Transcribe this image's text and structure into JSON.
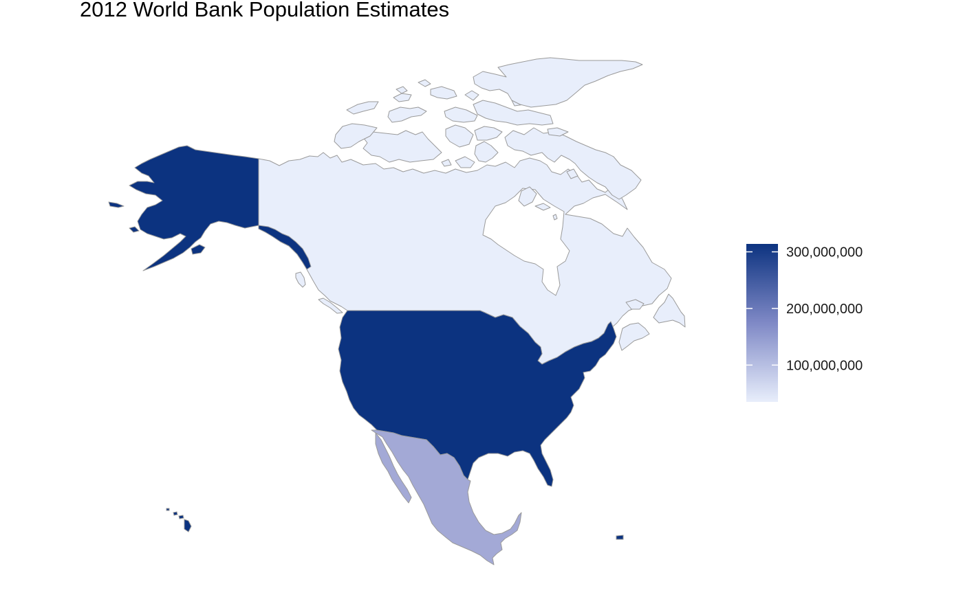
{
  "title": "2012 World Bank Population Estimates",
  "colors": {
    "low": "#e8eefb",
    "high": "#0c3380",
    "mexico": "#a3a9d6",
    "border": "#9a9a9a",
    "background": "#ffffff"
  },
  "regions": [
    {
      "name": "United States",
      "value": 314000000
    },
    {
      "name": "Canada",
      "value": 34900000
    },
    {
      "name": "Mexico",
      "value": 120800000
    }
  ],
  "legend": {
    "min": 34900000,
    "max": 314000000,
    "ticks": [
      {
        "value": 300000000,
        "label": "300,000,000"
      },
      {
        "value": 200000000,
        "label": "200,000,000"
      },
      {
        "value": 100000000,
        "label": "100,000,000"
      }
    ]
  }
}
